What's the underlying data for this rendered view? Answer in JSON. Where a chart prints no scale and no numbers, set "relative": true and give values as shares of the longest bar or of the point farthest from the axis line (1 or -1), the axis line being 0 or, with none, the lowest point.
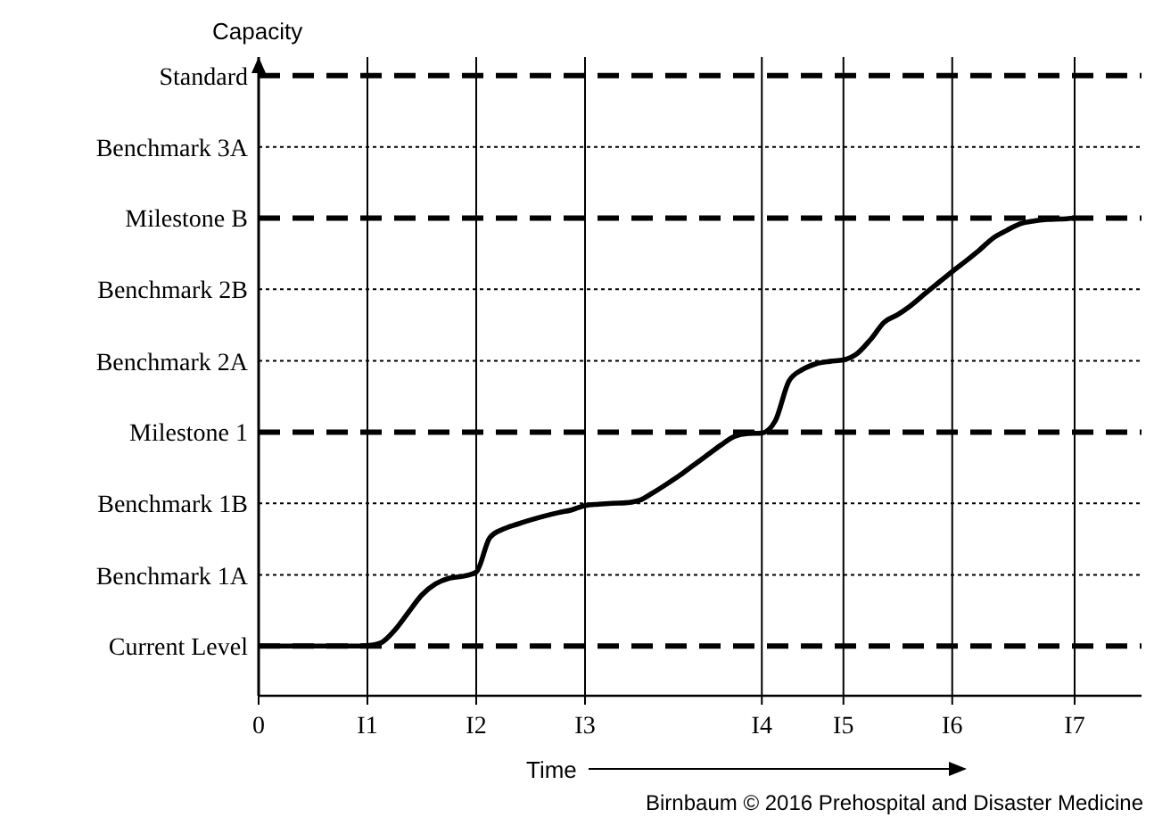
{
  "chart_data": {
    "type": "line",
    "xlabel": "Time",
    "relative": true,
    "categories": [
      "0",
      null,
      null,
      null,
      null,
      null,
      null,
      null,
      "I1",
      null,
      null,
      null,
      null,
      null,
      null,
      null,
      "I2",
      null,
      null,
      null,
      null,
      null,
      null,
      null,
      "I3",
      null,
      null,
      null,
      null,
      null,
      null,
      null,
      null,
      null,
      null,
      null,
      null,
      "I4",
      null,
      null,
      null,
      null,
      null,
      "I5",
      null,
      null,
      null,
      null,
      null,
      null,
      null,
      "I6",
      null,
      null,
      null,
      null,
      null,
      null,
      null,
      null,
      "I7",
      null,
      null,
      null,
      null
    ],
    "series": [
      {
        "color": "#000000",
        "values": [
          0.104,
          0.104,
          0.104,
          0.104,
          0.104,
          0.104,
          0.104,
          0.104,
          0.105,
          0.111,
          0.137,
          0.174,
          0.211,
          0.234,
          0.246,
          0.25,
          0.259,
          0.331,
          0.349,
          0.359,
          0.368,
          0.376,
          0.383,
          0.389,
          0.398,
          0.401,
          0.403,
          0.404,
          0.409,
          0.425,
          0.443,
          0.462,
          0.483,
          0.504,
          0.525,
          0.543,
          0.549,
          0.55,
          0.576,
          0.659,
          0.683,
          0.695,
          0.7,
          0.703,
          0.716,
          0.746,
          0.782,
          0.798,
          0.818,
          0.842,
          0.865,
          0.888,
          0.91,
          0.933,
          0.958,
          0.974,
          0.988,
          0.994,
          0.997,
          0.998,
          1.0,
          null,
          null,
          null,
          null
        ]
      }
    ],
    "grid": "x",
    "marker": "none",
    "line_style": "solid",
    "ref_lines": [
      {
        "axis": "y",
        "value": 0.104,
        "label": "Current Level",
        "line_style": "dashed",
        "color": "#000000"
      },
      {
        "axis": "y",
        "value": 0.253,
        "label": "Benchmark 1A",
        "line_style": "dotted",
        "color": "#000000"
      },
      {
        "axis": "y",
        "value": 0.403,
        "label": "Benchmark 1B",
        "line_style": "dotted",
        "color": "#000000"
      },
      {
        "axis": "y",
        "value": 0.552,
        "label": "Milestone 1",
        "line_style": "dashed",
        "color": "#000000"
      },
      {
        "axis": "y",
        "value": 0.701,
        "label": "Benchmark 2A",
        "line_style": "dotted",
        "color": "#000000"
      },
      {
        "axis": "y",
        "value": 0.851,
        "label": "Benchmark 2B",
        "line_style": "dotted",
        "color": "#000000"
      },
      {
        "axis": "y",
        "value": 1.0,
        "label": "Milestone B",
        "line_style": "dashed",
        "color": "#000000"
      },
      {
        "axis": "y",
        "value": 1.149,
        "label": "Benchmark 3A",
        "line_style": "dotted",
        "color": "#000000"
      },
      {
        "axis": "y",
        "value": 1.298,
        "label": "Standard",
        "line_style": "dashed",
        "color": "#000000"
      }
    ],
    "annotations": [
      "Capacity",
      "Birnbaum © 2016 Prehospital and Disaster Medicine"
    ]
  }
}
